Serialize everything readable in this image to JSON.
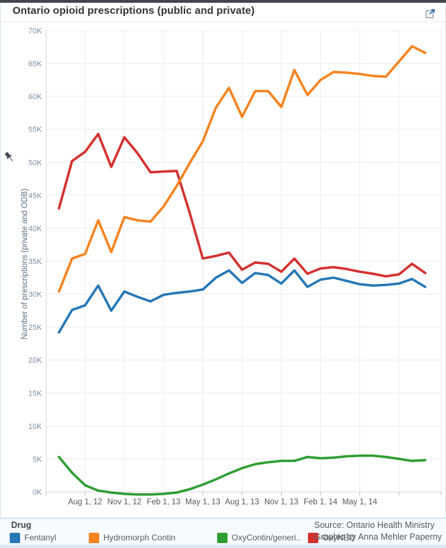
{
  "page": {
    "title": "Ontario opioid prescriptions (public and private)"
  },
  "icons": {
    "external_link": "open-in-new-window",
    "pin": "pushpin"
  },
  "chart_data": {
    "type": "line",
    "title": "Ontario opioid prescriptions (public and private)",
    "xlabel": "",
    "ylabel": "Number of prescriptions (private and ODB)",
    "ylim": [
      0,
      70000
    ],
    "y_tick_step": 5000,
    "y_tick_labels": [
      "0K",
      "5K",
      "10K",
      "15K",
      "20K",
      "25K",
      "30K",
      "35K",
      "40K",
      "45K",
      "50K",
      "55K",
      "60K",
      "65K",
      "70K"
    ],
    "grid": true,
    "legend_position": "bottom",
    "x_months": [
      "Jun 2012",
      "Jul 2012",
      "Aug 2012",
      "Sep 2012",
      "Oct 2012",
      "Nov 2012",
      "Dec 2012",
      "Jan 2013",
      "Feb 2013",
      "Mar 2013",
      "Apr 2013",
      "May 2013",
      "Jun 2013",
      "Jul 2013",
      "Aug 2013",
      "Sep 2013",
      "Oct 2013",
      "Nov 2013",
      "Dec 2013",
      "Jan 2014",
      "Feb 2014",
      "Mar 2014",
      "Apr 2014",
      "May 2014",
      "Jun 2014",
      "Jul 2014",
      "Aug 2014",
      "Sep 2014",
      "Oct 2014"
    ],
    "x_ticks": [
      {
        "index": 2,
        "label": "Aug 1, 12"
      },
      {
        "index": 5,
        "label": "Nov 1, 12"
      },
      {
        "index": 8,
        "label": "Feb 1, 13"
      },
      {
        "index": 11,
        "label": "May 1, 13"
      },
      {
        "index": 14,
        "label": "Aug 1, 13"
      },
      {
        "index": 17,
        "label": "Nov 1, 13"
      },
      {
        "index": 20,
        "label": "Feb 1, 14"
      },
      {
        "index": 23,
        "label": "May 1, 14"
      },
      {
        "index": 26,
        "label": ""
      }
    ],
    "draw_order": [
      0,
      2,
      3,
      1
    ],
    "series": [
      {
        "name": "Fentanyl",
        "color": "#2577b5",
        "values": [
          24200,
          27600,
          28300,
          31300,
          27500,
          30400,
          29600,
          28900,
          29900,
          30200,
          30400,
          30700,
          32500,
          33600,
          31700,
          33200,
          32900,
          31600,
          33600,
          31100,
          32200,
          32500,
          32000,
          31500,
          31300,
          31400,
          31600,
          32300,
          31100
        ]
      },
      {
        "name": "Hydromorph Contin",
        "color": "#f5831f",
        "values": [
          30400,
          35400,
          36100,
          41200,
          36400,
          41700,
          41200,
          41000,
          43300,
          46400,
          49900,
          53200,
          58300,
          61300,
          56900,
          60800,
          60800,
          58400,
          64000,
          60200,
          62500,
          63700,
          63600,
          63400,
          63100,
          63000,
          65300,
          67600,
          66600
        ]
      },
      {
        "name": "OxyContin/generic",
        "color": "#2e9e32",
        "values": [
          5300,
          2900,
          1000,
          200,
          -100,
          -300,
          -400,
          -400,
          -300,
          -100,
          400,
          1100,
          1900,
          2800,
          3600,
          4200,
          4500,
          4700,
          4700,
          5300,
          5100,
          5200,
          5400,
          5500,
          5500,
          5300,
          5000,
          4700,
          4800
        ]
      },
      {
        "name": "OxyNEO",
        "color": "#d4302e",
        "values": [
          43000,
          50200,
          51600,
          54300,
          49300,
          53800,
          51400,
          48500,
          48600,
          48700,
          42300,
          35400,
          35800,
          36300,
          33700,
          34800,
          34600,
          33400,
          35400,
          33100,
          33900,
          34100,
          33800,
          33400,
          33100,
          32700,
          33000,
          34600,
          33200
        ]
      }
    ]
  },
  "legend": {
    "title": "Drug",
    "items": [
      {
        "label": "Fentanyl",
        "color": "#2577b5"
      },
      {
        "label": "Hydromorph Contin",
        "color": "#f5831f"
      },
      {
        "label": "OxyContin/generi..",
        "color": "#2e9e32"
      },
      {
        "label": "OxyNEO",
        "color": "#d4302e"
      }
    ]
  },
  "source": {
    "line1": "Source: Ontario Health Ministry",
    "line2": "Graphic by Anna Mehler Paperny"
  }
}
